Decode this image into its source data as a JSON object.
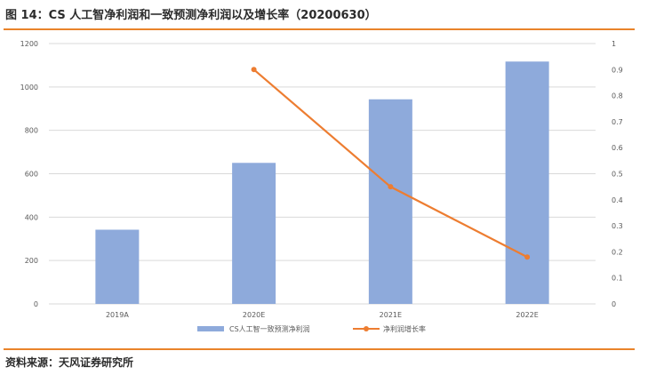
{
  "figure": {
    "title": "图 14：CS 人工智净利润和一致预测净利润以及增长率（20200630）",
    "source": "资料来源：天风证券研究所"
  },
  "colors": {
    "bar": "#8eaadb",
    "line": "#ed7d31",
    "grid": "#d9d9d9",
    "rule": "#e9832a"
  },
  "chart_data": {
    "type": "bar",
    "categories": [
      "2019A",
      "2020E",
      "2021E",
      "2022E"
    ],
    "series": [
      {
        "name": "CS人工智一致预测净利润",
        "type": "bar",
        "axis": "left",
        "values": [
          342,
          650,
          943,
          1117
        ]
      },
      {
        "name": "净利润增长率",
        "type": "line",
        "axis": "right",
        "values": [
          null,
          0.9,
          0.45,
          0.18
        ]
      }
    ],
    "ylim_left": [
      0,
      1200
    ],
    "yticks_left": [
      "0",
      "200",
      "400",
      "600",
      "800",
      "1000",
      "1200"
    ],
    "ylim_right": [
      0,
      1
    ],
    "yticks_right": [
      "0",
      "0.1",
      "0.2",
      "0.3",
      "0.4",
      "0.5",
      "0.6",
      "0.7",
      "0.8",
      "0.9",
      "1"
    ],
    "grid": true,
    "legend": "bottom"
  }
}
